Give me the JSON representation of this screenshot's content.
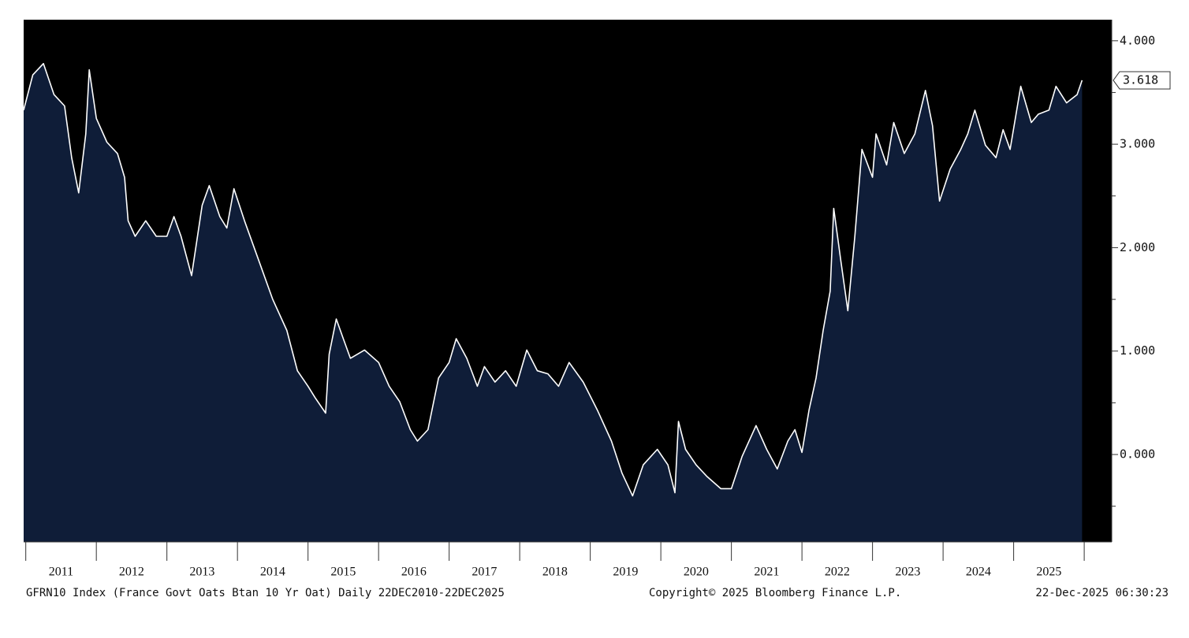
{
  "chart_data": {
    "type": "area",
    "footer_left": "GFRN10 Index (France Govt Oats Btan 10 Yr Oat) Daily 22DEC2010-22DEC2025",
    "footer_center": "Copyright© 2025 Bloomberg Finance L.P.",
    "footer_right": "22-Dec-2025 06:30:23",
    "xlim": [
      2010.97,
      2026.39
    ],
    "xticks": [
      2011,
      2012,
      2013,
      2014,
      2015,
      2016,
      2017,
      2018,
      2019,
      2020,
      2021,
      2022,
      2023,
      2024,
      2025,
      2026
    ],
    "xtick_labels": [
      "2011",
      "2012",
      "2013",
      "2014",
      "2015",
      "2016",
      "2017",
      "2018",
      "2019",
      "2020",
      "2021",
      "2022",
      "2023",
      "2024",
      "2025"
    ],
    "ylim": [
      -0.845,
      4.204
    ],
    "yticks": [
      {
        "value": 0,
        "label": "0.000"
      },
      {
        "value": 1,
        "label": "1.000"
      },
      {
        "value": 2,
        "label": "2.000"
      },
      {
        "value": 3,
        "label": "3.000"
      },
      {
        "value": 4,
        "label": "4.000"
      }
    ],
    "yminor": [
      -0.5,
      0.5,
      1.5,
      2.5,
      3.5
    ],
    "last_value": {
      "value": 3.618,
      "label": "3.618"
    },
    "background": "#000000",
    "series": [
      {
        "color": "#ffffff",
        "fill": "#0f1d38",
        "x": [
          2010.97,
          2011.1,
          2011.25,
          2011.4,
          2011.55,
          2011.65,
          2011.75,
          2011.85,
          2011.9,
          2012.0,
          2012.15,
          2012.3,
          2012.4,
          2012.45,
          2012.55,
          2012.7,
          2012.85,
          2013.0,
          2013.1,
          2013.2,
          2013.35,
          2013.5,
          2013.6,
          2013.75,
          2013.85,
          2013.95,
          2014.1,
          2014.3,
          2014.5,
          2014.7,
          2014.85,
          2015.0,
          2015.1,
          2015.25,
          2015.3,
          2015.4,
          2015.5,
          2015.6,
          2015.8,
          2016.0,
          2016.15,
          2016.3,
          2016.45,
          2016.55,
          2016.7,
          2016.85,
          2017.0,
          2017.1,
          2017.25,
          2017.4,
          2017.5,
          2017.65,
          2017.8,
          2017.95,
          2018.1,
          2018.25,
          2018.4,
          2018.55,
          2018.7,
          2018.9,
          2019.1,
          2019.3,
          2019.45,
          2019.6,
          2019.75,
          2019.95,
          2020.1,
          2020.2,
          2020.25,
          2020.35,
          2020.5,
          2020.65,
          2020.85,
          2021.0,
          2021.15,
          2021.35,
          2021.5,
          2021.65,
          2021.8,
          2021.9,
          2022.0,
          2022.1,
          2022.2,
          2022.3,
          2022.4,
          2022.45,
          2022.55,
          2022.65,
          2022.75,
          2022.85,
          2023.0,
          2023.05,
          2023.2,
          2023.3,
          2023.45,
          2023.6,
          2023.75,
          2023.85,
          2023.95,
          2024.1,
          2024.25,
          2024.35,
          2024.45,
          2024.6,
          2024.75,
          2024.85,
          2024.95,
          2025.1,
          2025.25,
          2025.35,
          2025.5,
          2025.6,
          2025.75,
          2025.9,
          2025.97
        ],
        "values": [
          3.33,
          3.67,
          3.78,
          3.48,
          3.37,
          2.87,
          2.53,
          3.1,
          3.72,
          3.25,
          3.02,
          2.91,
          2.68,
          2.26,
          2.11,
          2.26,
          2.11,
          2.11,
          2.3,
          2.11,
          1.73,
          2.41,
          2.6,
          2.3,
          2.19,
          2.57,
          2.26,
          1.88,
          1.5,
          1.2,
          0.81,
          0.66,
          0.55,
          0.4,
          0.97,
          1.31,
          1.12,
          0.93,
          1.01,
          0.89,
          0.66,
          0.51,
          0.24,
          0.13,
          0.24,
          0.74,
          0.89,
          1.12,
          0.93,
          0.66,
          0.85,
          0.7,
          0.81,
          0.66,
          1.01,
          0.81,
          0.78,
          0.66,
          0.89,
          0.7,
          0.43,
          0.13,
          -0.18,
          -0.4,
          -0.1,
          0.05,
          -0.1,
          -0.37,
          0.32,
          0.05,
          -0.1,
          -0.21,
          -0.33,
          -0.33,
          -0.02,
          0.28,
          0.05,
          -0.14,
          0.13,
          0.24,
          0.02,
          0.43,
          0.74,
          1.2,
          1.58,
          2.38,
          1.88,
          1.39,
          2.11,
          2.95,
          2.68,
          3.1,
          2.8,
          3.21,
          2.91,
          3.1,
          3.52,
          3.18,
          2.45,
          2.76,
          2.95,
          3.1,
          3.33,
          2.99,
          2.87,
          3.14,
          2.95,
          3.56,
          3.21,
          3.29,
          3.33,
          3.56,
          3.4,
          3.48,
          3.618
        ]
      }
    ]
  }
}
